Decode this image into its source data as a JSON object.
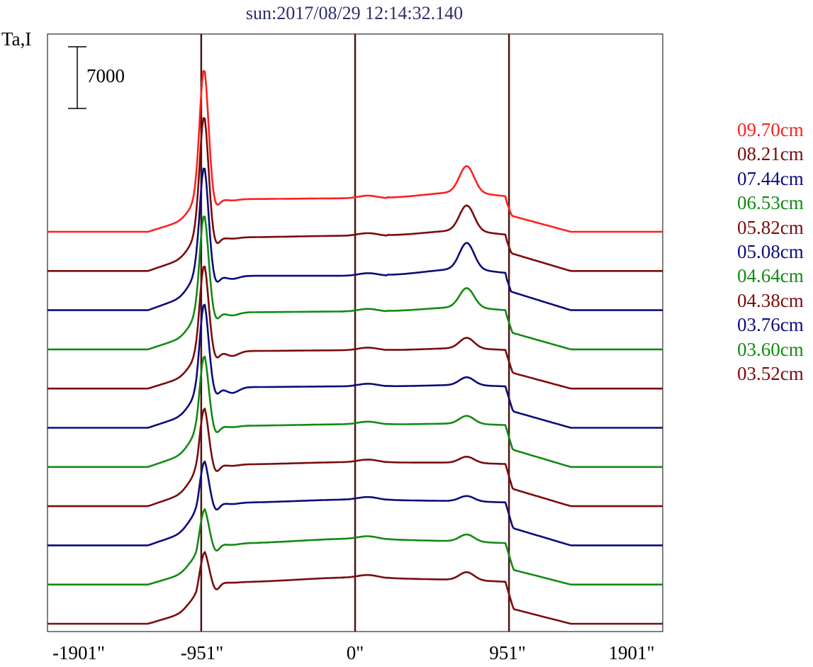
{
  "title": "sun:2017/08/29 12:14:32.140",
  "ylabel": "Ta,I",
  "scale_bar": {
    "label": "7000",
    "value": 7000
  },
  "colors": {
    "red": "#ff2020",
    "maroon": "#7a0c0c",
    "navy": "#0c0c7a",
    "green": "#138a13",
    "divider": "#4a1414",
    "axis": "#000000"
  },
  "chart_data": {
    "type": "line",
    "title": "sun:2017/08/29 12:14:32.140",
    "ylabel": "Ta,I",
    "xlabel": "",
    "x_ticks": [
      "-1901\"",
      "-951\"",
      "0\"",
      "951\"",
      "1901\""
    ],
    "x_tick_values": [
      -1901,
      -951,
      0,
      951,
      1901
    ],
    "xlim": [
      -1901,
      1901
    ],
    "vertical_markers": [
      -951,
      0,
      951
    ],
    "grid": false,
    "legend_position": "right",
    "stacked_offsets": true,
    "series": [
      {
        "name": "09.70cm",
        "color": "red",
        "limb_peak": 16500,
        "east_bump": 3500,
        "west_peak": 7000,
        "center": 4100,
        "plateau": 4000,
        "shoulder": 2000,
        "tail": 300
      },
      {
        "name": "08.21cm",
        "color": "maroon",
        "limb_peak": 15400,
        "east_bump": 3500,
        "west_peak": 6900,
        "center": 4200,
        "plateau": 4000,
        "shoulder": 2200,
        "tail": 200
      },
      {
        "name": "07.44cm",
        "color": "navy",
        "limb_peak": 14100,
        "east_bump": 3500,
        "west_peak": 7200,
        "center": 4200,
        "plateau": 4200,
        "shoulder": 2300,
        "tail": 300
      },
      {
        "name": "06.53cm",
        "color": "green",
        "limb_peak": 13000,
        "east_bump": 3700,
        "west_peak": 6600,
        "center": 4500,
        "plateau": 4400,
        "shoulder": 2100,
        "tail": 200
      },
      {
        "name": "05.82cm",
        "color": "maroon",
        "limb_peak": 11800,
        "east_bump": 3600,
        "west_peak": 5700,
        "center": 4600,
        "plateau": 4500,
        "shoulder": 2000,
        "tail": 250
      },
      {
        "name": "05.08cm",
        "color": "navy",
        "limb_peak": 11700,
        "east_bump": 3800,
        "west_peak": 5700,
        "center": 4900,
        "plateau": 4800,
        "shoulder": 2100,
        "tail": 200
      },
      {
        "name": "04.64cm",
        "color": "green",
        "limb_peak": 10200,
        "east_bump": 4400,
        "west_peak": 5800,
        "center": 5100,
        "plateau": 4900,
        "shoulder": 2200,
        "tail": 250
      },
      {
        "name": "04.38cm",
        "color": "maroon",
        "limb_peak": 8700,
        "east_bump": 4500,
        "west_peak": 5700,
        "center": 5300,
        "plateau": 5000,
        "shoulder": 2200,
        "tail": 300
      },
      {
        "name": "03.76cm",
        "color": "navy",
        "limb_peak": 7000,
        "east_bump": 4500,
        "west_peak": 5600,
        "center": 5400,
        "plateau": 5000,
        "shoulder": 2200,
        "tail": 200
      },
      {
        "name": "03.60cm",
        "color": "green",
        "limb_peak": 6200,
        "east_bump": 4300,
        "west_peak": 5600,
        "center": 5400,
        "plateau": 4800,
        "shoulder": 1900,
        "tail": 200
      },
      {
        "name": "03.52cm",
        "color": "maroon",
        "limb_peak": 5800,
        "east_bump": 4500,
        "west_peak": 5800,
        "center": 5500,
        "plateau": 4900,
        "shoulder": 1900,
        "tail": 250
      }
    ]
  }
}
